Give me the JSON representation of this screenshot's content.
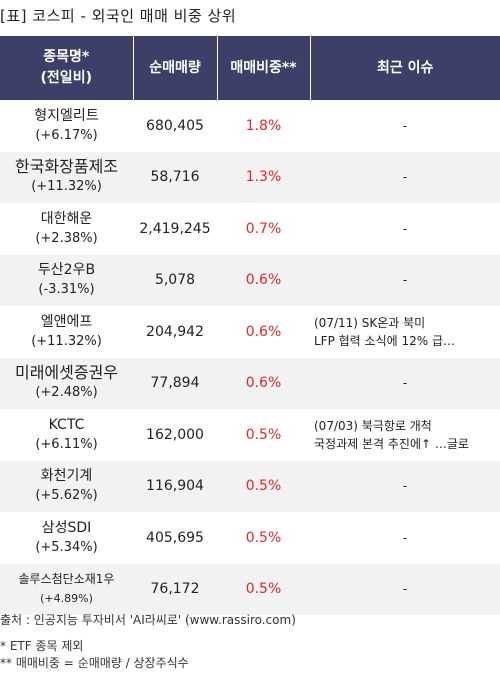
{
  "title": "[표] 코스피 - 외국인 매매 비중 상위",
  "header": {
    "col1_line1": "종목명*",
    "col1_line2": "(전일비)",
    "col2": "순매매량",
    "col3": "매매비중**",
    "col4": "최근 이슈"
  },
  "rows": [
    {
      "name": "형지엘리트",
      "change": "(+6.17%)",
      "volume": "680,405",
      "ratio": "1.8%",
      "issue1": "-",
      "issue2": ""
    },
    {
      "name": "한국화장품제조",
      "change": "(+11.32%)",
      "volume": "58,716",
      "ratio": "1.3%",
      "issue1": "-",
      "issue2": ""
    },
    {
      "name": "대한해운",
      "change": "(+2.38%)",
      "volume": "2,419,245",
      "ratio": "0.7%",
      "issue1": "-",
      "issue2": ""
    },
    {
      "name": "두산2우B",
      "change": "(-3.31%)",
      "volume": "5,078",
      "ratio": "0.6%",
      "issue1": "-",
      "issue2": ""
    },
    {
      "name": "엘앤에프",
      "change": "(+11.32%)",
      "volume": "204,942",
      "ratio": "0.6%",
      "issue1": "(07/11) SK온과 북미",
      "issue2": "LFP 협력 소식에 12% 급…"
    },
    {
      "name": "미래에셋증권우",
      "change": "(+2.48%)",
      "volume": "77,894",
      "ratio": "0.6%",
      "issue1": "-",
      "issue2": ""
    },
    {
      "name": "KCTC",
      "change": "(+6.11%)",
      "volume": "162,000",
      "ratio": "0.5%",
      "issue1": "(07/03) 북극항로 개척",
      "issue2": "국정과제 본격 추진에↑ …글로"
    },
    {
      "name": "화천기계",
      "change": "(+5.62%)",
      "volume": "116,904",
      "ratio": "0.5%",
      "issue1": "-",
      "issue2": ""
    },
    {
      "name": "삼성SDI",
      "change": "(+5.34%)",
      "volume": "405,695",
      "ratio": "0.5%",
      "issue1": "-",
      "issue2": ""
    },
    {
      "name": "솔루스첨단소재1우",
      "change": "(+4.89%)",
      "volume": "76,172",
      "ratio": "0.5%",
      "issue1": "-",
      "issue2": ""
    }
  ],
  "footer": {
    "source": "출처 : 인공지능 투자비서 'AI라씨로' (www.rassiro.com)",
    "note1": "* ETF 종목 제외",
    "note2": "** 매매비중 = 순매매량 / 상장주식수"
  },
  "colors": {
    "header_bg": "#3c4068",
    "ratio_text": "#e0282e",
    "stripe": "#f2f2f2"
  }
}
